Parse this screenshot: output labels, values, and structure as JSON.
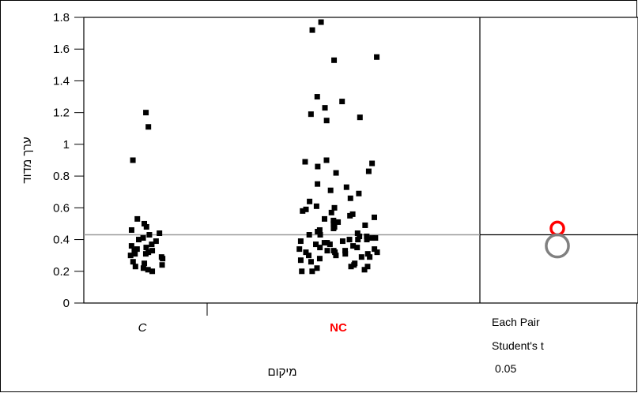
{
  "chart_data": {
    "type": "scatter",
    "subtype": "one-way-jitter-with-comparison-circles",
    "ylabel": "ערך מדוד",
    "xlabel": "מיקום",
    "ylim": [
      0,
      1.8
    ],
    "yticks": [
      0,
      0.2,
      0.4,
      0.6,
      0.8,
      1,
      1.2,
      1.4,
      1.6,
      1.8
    ],
    "ytick_labels": [
      "0",
      "0.2",
      "0.4",
      "0.6",
      "0.8",
      "1",
      "1.2",
      "1.4",
      "1.6",
      "1.8"
    ],
    "grand_mean": 0.43,
    "grid": false,
    "categories": [
      {
        "name": "C",
        "label_color": "#000000",
        "italic": true,
        "bold": false
      },
      {
        "name": "NC",
        "label_color": "#ff0000",
        "italic": false,
        "bold": true
      }
    ],
    "series": [
      {
        "category": "C",
        "values": [
          1.2,
          1.11,
          0.9,
          0.53,
          0.5,
          0.48,
          0.46,
          0.44,
          0.43,
          0.41,
          0.4,
          0.39,
          0.37,
          0.36,
          0.35,
          0.34,
          0.33,
          0.33,
          0.32,
          0.31,
          0.31,
          0.3,
          0.29,
          0.28,
          0.26,
          0.25,
          0.24,
          0.23,
          0.22,
          0.21,
          0.2
        ]
      },
      {
        "category": "NC",
        "values": [
          1.77,
          1.72,
          1.55,
          1.53,
          1.3,
          1.27,
          1.23,
          1.19,
          1.17,
          1.15,
          0.9,
          0.89,
          0.88,
          0.86,
          0.83,
          0.82,
          0.75,
          0.73,
          0.71,
          0.69,
          0.66,
          0.64,
          0.61,
          0.6,
          0.59,
          0.58,
          0.57,
          0.56,
          0.55,
          0.54,
          0.53,
          0.52,
          0.51,
          0.5,
          0.49,
          0.48,
          0.47,
          0.46,
          0.45,
          0.44,
          0.43,
          0.43,
          0.42,
          0.42,
          0.41,
          0.41,
          0.4,
          0.4,
          0.4,
          0.39,
          0.39,
          0.38,
          0.38,
          0.37,
          0.37,
          0.36,
          0.35,
          0.35,
          0.34,
          0.34,
          0.33,
          0.33,
          0.33,
          0.32,
          0.32,
          0.32,
          0.31,
          0.31,
          0.3,
          0.3,
          0.29,
          0.29,
          0.28,
          0.27,
          0.26,
          0.25,
          0.24,
          0.23,
          0.23,
          0.22,
          0.21,
          0.2,
          0.2
        ]
      }
    ],
    "comparison_circles": {
      "title_lines": [
        "Each Pair",
        "Student's t",
        "0.05"
      ],
      "circles": [
        {
          "category": "NC",
          "center": 0.47,
          "radius": 0.04,
          "color": "#ff0000"
        },
        {
          "category": "C",
          "center": 0.36,
          "radius": 0.07,
          "color": "#808080"
        }
      ]
    }
  }
}
